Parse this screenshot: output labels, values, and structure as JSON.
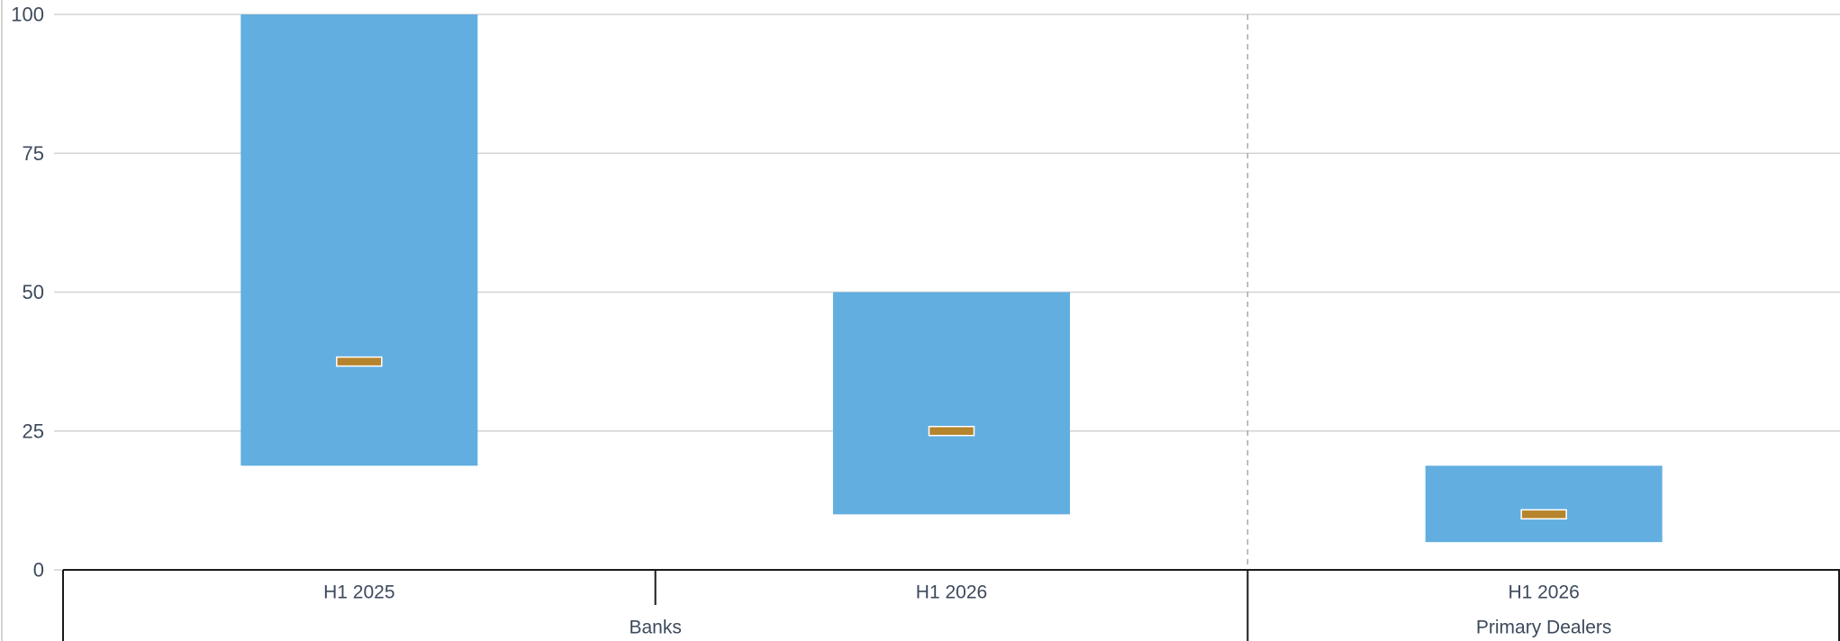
{
  "colors": {
    "range_bar": "#62aee0",
    "median_marker": "#b5842d",
    "gridline": "#d3d3d3",
    "axis": "#1a1a1a",
    "separator": "#a9a9a9",
    "text": "#3d4a5c"
  },
  "chart_data": {
    "type": "bar",
    "subtype": "floating-range-with-median",
    "title": "",
    "xlabel": "",
    "ylabel": "",
    "ylim": [
      0,
      100
    ],
    "yticks": [
      0,
      25,
      50,
      75,
      100
    ],
    "grid": true,
    "legend": "none",
    "groups": [
      {
        "name": "Banks",
        "items": [
          {
            "label": "H1 2025",
            "low": 18.75,
            "high": 100,
            "median": 37.5
          },
          {
            "label": "H1 2026",
            "low": 10,
            "high": 50,
            "median": 25
          }
        ]
      },
      {
        "name": "Primary Dealers",
        "items": [
          {
            "label": "H1 2026",
            "low": 5,
            "high": 18.75,
            "median": 10
          }
        ]
      }
    ]
  }
}
